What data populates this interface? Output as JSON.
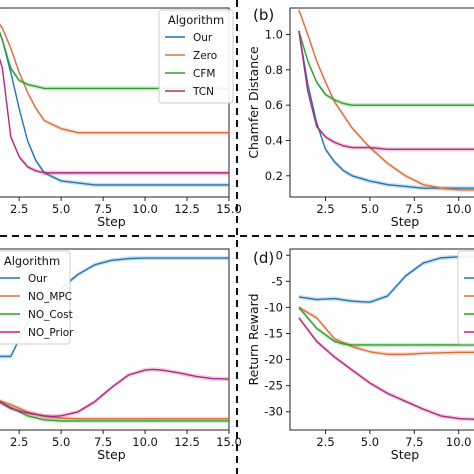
{
  "chart_data": [
    {
      "panel": "a",
      "panel_label": "",
      "type": "line",
      "xlabel": "Step",
      "ylabel": "",
      "xlim": [
        1.0,
        15.0
      ],
      "ylim": [
        0.13,
        0.6
      ],
      "xticks": [
        "2.5",
        "5.0",
        "7.5",
        "10.0",
        "12.5",
        "15.0"
      ],
      "xtick_values": [
        2.5,
        5.0,
        7.5,
        10.0,
        12.5,
        15.0
      ],
      "yticks": [],
      "grid": false,
      "legend": {
        "title": "Algorithm",
        "placement": "top-right",
        "entries": [
          "Our",
          "Zero",
          "CFM",
          "TCN"
        ]
      },
      "series": [
        {
          "name": "Our",
          "color": "#1f77b4",
          "x": [
            1,
            1.5,
            2,
            2.5,
            3,
            3.5,
            4,
            5,
            6,
            7,
            8,
            10,
            12,
            15
          ],
          "y": [
            0.58,
            0.52,
            0.44,
            0.35,
            0.27,
            0.22,
            0.19,
            0.17,
            0.165,
            0.16,
            0.16,
            0.16,
            0.16,
            0.16
          ]
        },
        {
          "name": "Zero",
          "color": "#d9703c",
          "x": [
            1,
            1.5,
            2,
            2.5,
            3,
            3.5,
            4,
            5,
            6,
            7,
            8,
            10,
            12,
            15
          ],
          "y": [
            0.58,
            0.55,
            0.5,
            0.44,
            0.39,
            0.35,
            0.32,
            0.3,
            0.29,
            0.29,
            0.29,
            0.29,
            0.29,
            0.29
          ]
        },
        {
          "name": "CFM",
          "color": "#2ca02c",
          "x": [
            1,
            1.5,
            2,
            2.5,
            3,
            4,
            5,
            7,
            10,
            12,
            15
          ],
          "y": [
            0.58,
            0.52,
            0.45,
            0.42,
            0.41,
            0.4,
            0.4,
            0.4,
            0.4,
            0.4,
            0.4
          ]
        },
        {
          "name": "TCN",
          "color": "#b5277e",
          "x": [
            1,
            1.5,
            2,
            2.5,
            3,
            3.5,
            4,
            5,
            7,
            10,
            15
          ],
          "y": [
            0.52,
            0.45,
            0.28,
            0.23,
            0.205,
            0.195,
            0.19,
            0.19,
            0.19,
            0.19,
            0.19
          ]
        }
      ]
    },
    {
      "panel": "b",
      "panel_label": "(b)",
      "type": "line",
      "xlabel": "Step",
      "ylabel": "Chamfer Distance",
      "xlim": [
        0.5,
        11.2
      ],
      "ylim": [
        0.08,
        1.15
      ],
      "xticks": [
        "2.5",
        "5.0",
        "7.5",
        "10.0"
      ],
      "xtick_values": [
        2.5,
        5.0,
        7.5,
        10.0
      ],
      "yticks": [
        "0.2",
        "0.4",
        "0.6",
        "0.8",
        "1.0"
      ],
      "ytick_values": [
        0.2,
        0.4,
        0.6,
        0.8,
        1.0
      ],
      "grid": false,
      "series": [
        {
          "name": "Our",
          "color": "#1f77b4",
          "x": [
            1,
            1.5,
            2,
            2.5,
            3,
            3.5,
            4,
            5,
            6,
            7,
            8,
            9,
            10,
            11.2
          ],
          "y": [
            1.02,
            0.72,
            0.5,
            0.35,
            0.28,
            0.23,
            0.2,
            0.17,
            0.15,
            0.14,
            0.13,
            0.13,
            0.13,
            0.13
          ]
        },
        {
          "name": "Zero",
          "color": "#d9703c",
          "x": [
            1,
            1.5,
            2,
            2.5,
            3,
            4,
            5,
            6,
            7,
            8,
            9,
            10,
            11.2
          ],
          "y": [
            1.14,
            1.0,
            0.85,
            0.73,
            0.62,
            0.47,
            0.36,
            0.27,
            0.2,
            0.15,
            0.13,
            0.12,
            0.12
          ]
        },
        {
          "name": "CFM",
          "color": "#2ca02c",
          "x": [
            1,
            1.5,
            2,
            2.5,
            3,
            3.5,
            4,
            5,
            7,
            9,
            11.2
          ],
          "y": [
            1.02,
            0.85,
            0.73,
            0.66,
            0.63,
            0.61,
            0.6,
            0.6,
            0.6,
            0.6,
            0.6
          ]
        },
        {
          "name": "TCN",
          "color": "#b5277e",
          "x": [
            1,
            1.5,
            2,
            2.5,
            3,
            3.5,
            4,
            5,
            6,
            7,
            9,
            11.2
          ],
          "y": [
            1.02,
            0.68,
            0.48,
            0.42,
            0.39,
            0.37,
            0.36,
            0.36,
            0.35,
            0.35,
            0.35,
            0.35
          ]
        }
      ]
    },
    {
      "panel": "c",
      "panel_label": "",
      "type": "line",
      "xlabel": "Step",
      "ylabel": "",
      "xlim": [
        1.0,
        15.0
      ],
      "ylim": [
        -30,
        2
      ],
      "xticks": [
        "2.5",
        "5.0",
        "7.5",
        "10.0",
        "12.5",
        "15.0"
      ],
      "xtick_values": [
        2.5,
        5.0,
        7.5,
        10.0,
        12.5,
        15.0
      ],
      "yticks": [],
      "grid": false,
      "legend": {
        "title": "Algorithm",
        "placement": "top-left",
        "entries": [
          "Our",
          "NO_MPC",
          "NO_Cost",
          "NO_Prior"
        ]
      },
      "series": [
        {
          "name": "Our",
          "color": "#1f77b4",
          "x": [
            1,
            2,
            2.5,
            3,
            4,
            5,
            6,
            7,
            8,
            9,
            10,
            12,
            15
          ],
          "y": [
            -17,
            -17,
            -14,
            -11,
            -8,
            -5,
            -2.5,
            -0.8,
            0,
            0.3,
            0.4,
            0.4,
            0.4
          ]
        },
        {
          "name": "NO_MPC",
          "color": "#d9703c",
          "x": [
            1,
            2,
            3,
            4,
            5,
            6,
            8,
            10,
            12,
            15
          ],
          "y": [
            -24.5,
            -25.5,
            -26.8,
            -27.6,
            -27.9,
            -28,
            -28,
            -28,
            -28,
            -28
          ]
        },
        {
          "name": "NO_Cost",
          "color": "#2ca02c",
          "x": [
            1,
            2,
            3,
            4,
            5,
            7,
            10,
            12,
            15
          ],
          "y": [
            -24.5,
            -26,
            -27.5,
            -28.2,
            -28.4,
            -28.4,
            -28.4,
            -28.4,
            -28.4
          ]
        },
        {
          "name": "NO_Prior",
          "color": "#b5277e",
          "x": [
            1,
            2,
            3,
            4,
            4.5,
            5,
            6,
            7,
            8,
            9,
            10,
            10.5,
            11,
            12,
            13,
            14,
            15
          ],
          "y": [
            -24.5,
            -26.2,
            -27,
            -27.5,
            -27.6,
            -27.5,
            -26.8,
            -25,
            -22.5,
            -20.3,
            -19.4,
            -19.3,
            -19.4,
            -19.9,
            -20.5,
            -20.9,
            -21
          ]
        }
      ]
    },
    {
      "panel": "d",
      "panel_label": "(d)",
      "type": "line",
      "xlabel": "Step",
      "ylabel": "Return Reward",
      "xlim": [
        0.5,
        11.2
      ],
      "ylim": [
        -33.5,
        1.2
      ],
      "xticks": [
        "2.5",
        "5.0",
        "7.5",
        "10.0"
      ],
      "xtick_values": [
        2.5,
        5.0,
        7.5,
        10.0
      ],
      "yticks": [
        "0",
        "-5",
        "-10",
        "-15",
        "-20",
        "-25",
        "-30"
      ],
      "ytick_values": [
        0,
        -5,
        -10,
        -15,
        -20,
        -25,
        -30
      ],
      "grid": false,
      "legend": {
        "title": "A",
        "placement": "top-right",
        "entries": [
          "",
          "",
          "",
          ""
        ]
      },
      "series": [
        {
          "name": "Our",
          "color": "#1f77b4",
          "x": [
            1,
            2,
            3,
            4,
            5,
            6,
            7,
            8,
            9,
            10,
            11.2
          ],
          "y": [
            -8,
            -8.5,
            -8.3,
            -8.8,
            -9,
            -7.8,
            -4,
            -1.5,
            -0.5,
            -0.3,
            -0.3
          ]
        },
        {
          "name": "NO_MPC",
          "color": "#d9703c",
          "x": [
            1,
            1.5,
            2,
            3,
            4,
            5,
            6,
            7,
            8,
            9,
            10,
            11.2
          ],
          "y": [
            -10,
            -11,
            -12,
            -16,
            -17.5,
            -18.5,
            -19,
            -19,
            -18.8,
            -18.7,
            -18.6,
            -18.6
          ]
        },
        {
          "name": "NO_Cost",
          "color": "#2ca02c",
          "x": [
            1,
            2,
            3,
            3.5,
            4,
            5,
            6,
            8,
            10,
            11.2
          ],
          "y": [
            -10,
            -14,
            -16.5,
            -17,
            -17.2,
            -17.2,
            -17.2,
            -17.2,
            -17.2,
            -17.2
          ]
        },
        {
          "name": "NO_Prior",
          "color": "#b5277e",
          "x": [
            1,
            2,
            3,
            4,
            5,
            6,
            7,
            8,
            9,
            10,
            11.2
          ],
          "y": [
            -12,
            -16.5,
            -19.5,
            -22,
            -24.5,
            -26.5,
            -28,
            -29.5,
            -30.8,
            -31.3,
            -31.5
          ]
        }
      ]
    }
  ]
}
